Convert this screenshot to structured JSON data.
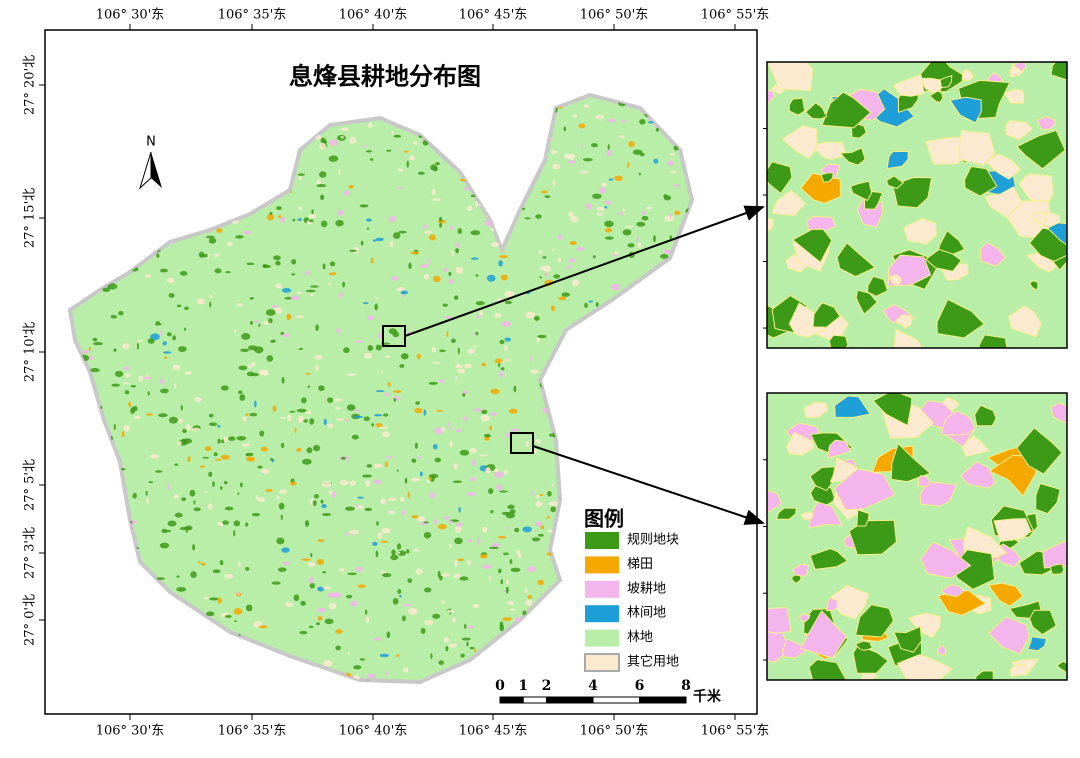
{
  "title": "息烽县耕地分布图",
  "north": "N",
  "longitude_labels": [
    "106° 30'东",
    "106° 35'东",
    "106° 40'东",
    "106° 45'东",
    "106° 50'东",
    "106° 55'东"
  ],
  "latitude_labels": [
    "27° 20'北",
    "27° 15'北",
    "27° 10'北",
    "27° 5'北",
    "27° 3'北",
    "27° 0'北"
  ],
  "legend": {
    "title": "图例",
    "items": [
      {
        "label": "规则地块",
        "color": "#3c9a16"
      },
      {
        "label": "梯田",
        "color": "#f5a800"
      },
      {
        "label": "坡耕地",
        "color": "#f4b4ec"
      },
      {
        "label": "林间地",
        "color": "#1f9fd8"
      },
      {
        "label": "林地",
        "color": "#b8eea8"
      },
      {
        "label": "其它用地",
        "color": "#fbead0"
      }
    ]
  },
  "scale_bar": {
    "ticks": [
      0,
      1,
      2,
      4,
      6,
      8
    ],
    "unit": "千米"
  }
}
